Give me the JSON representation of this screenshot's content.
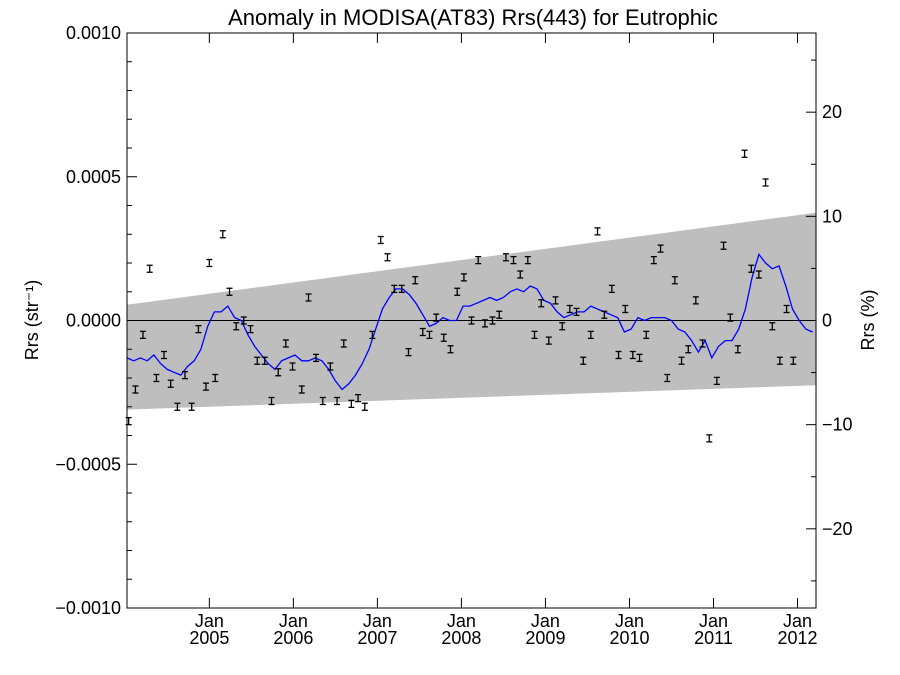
{
  "chart_data": {
    "type": "scatter",
    "title": "Anomaly in MODISA(AT83) Rrs(443) for Eutrophic",
    "ylabel_left": "Rrs (str⁻¹)",
    "ylabel_right": "Rrs (%)",
    "xlabel": "",
    "x_range": [
      2004.02,
      2012.22
    ],
    "ylim": [
      -0.001,
      0.001
    ],
    "ylim_right": [
      -27.6,
      27.6
    ],
    "left_ticks": [
      {
        "value": -0.001,
        "label": "−0.0010"
      },
      {
        "value": -0.0005,
        "label": "−0.0005"
      },
      {
        "value": 0.0,
        "label": "0.0000"
      },
      {
        "value": 0.0005,
        "label": "0.0005"
      },
      {
        "value": 0.001,
        "label": "0.0010"
      }
    ],
    "right_ticks": [
      {
        "value": -20,
        "label": "−20"
      },
      {
        "value": -10,
        "label": "−10"
      },
      {
        "value": 0,
        "label": "0"
      },
      {
        "value": 10,
        "label": "10"
      },
      {
        "value": 20,
        "label": "20"
      }
    ],
    "x_ticks": [
      {
        "value": 2005.0,
        "line1": "Jan",
        "line2": "2005"
      },
      {
        "value": 2006.0,
        "line1": "Jan",
        "line2": "2006"
      },
      {
        "value": 2007.0,
        "line1": "Jan",
        "line2": "2007"
      },
      {
        "value": 2008.0,
        "line1": "Jan",
        "line2": "2008"
      },
      {
        "value": 2009.0,
        "line1": "Jan",
        "line2": "2009"
      },
      {
        "value": 2010.0,
        "line1": "Jan",
        "line2": "2010"
      },
      {
        "value": 2011.0,
        "line1": "Jan",
        "line2": "2011"
      },
      {
        "value": 2012.0,
        "line1": "Jan",
        "line2": "2012"
      }
    ],
    "band": {
      "x": [
        2004.02,
        2012.22
      ],
      "upper": [
        5.5e-05,
        0.000375
      ],
      "lower": [
        -0.00031,
        -0.000225
      ],
      "color": "#bebebe"
    },
    "zero_line": 0.0,
    "colors": {
      "points": "#000000",
      "smooth": "#0000ff",
      "band": "#bebebe"
    },
    "series": [
      {
        "kind": "monthly_anomaly_with_errorbars",
        "points": [
          [
            2004.04,
            -0.00035
          ],
          [
            2004.12,
            -0.00024
          ],
          [
            2004.21,
            -5e-05
          ],
          [
            2004.29,
            0.00018
          ],
          [
            2004.37,
            -0.0002
          ],
          [
            2004.46,
            -0.00012
          ],
          [
            2004.54,
            -0.00022
          ],
          [
            2004.62,
            -0.0003
          ],
          [
            2004.71,
            -0.00019
          ],
          [
            2004.79,
            -0.0003
          ],
          [
            2004.87,
            -3e-05
          ],
          [
            2004.96,
            -0.00023
          ],
          [
            2005.0,
            0.0002
          ],
          [
            2005.07,
            -0.0002
          ],
          [
            2005.16,
            0.0003
          ],
          [
            2005.24,
            0.0001
          ],
          [
            2005.32,
            -2e-05
          ],
          [
            2005.41,
            0.0
          ],
          [
            2005.49,
            -3e-05
          ],
          [
            2005.57,
            -0.00014
          ],
          [
            2005.66,
            -0.00014
          ],
          [
            2005.74,
            -0.00028
          ],
          [
            2005.82,
            -0.00018
          ],
          [
            2005.91,
            -8e-05
          ],
          [
            2005.99,
            -0.00016
          ],
          [
            2006.1,
            -0.00024
          ],
          [
            2006.18,
            8e-05
          ],
          [
            2006.27,
            -0.00013
          ],
          [
            2006.35,
            -0.00028
          ],
          [
            2006.44,
            -0.00016
          ],
          [
            2006.52,
            -0.00028
          ],
          [
            2006.6,
            -8e-05
          ],
          [
            2006.69,
            -0.00029
          ],
          [
            2006.77,
            -0.00027
          ],
          [
            2006.85,
            -0.0003
          ],
          [
            2006.94,
            -5e-05
          ],
          [
            2007.04,
            0.00028
          ],
          [
            2007.12,
            0.00022
          ],
          [
            2007.2,
            0.00011
          ],
          [
            2007.29,
            0.00011
          ],
          [
            2007.37,
            -0.00011
          ],
          [
            2007.45,
            0.00014
          ],
          [
            2007.54,
            -4e-05
          ],
          [
            2007.62,
            -5e-05
          ],
          [
            2007.7,
            1e-05
          ],
          [
            2007.79,
            -6e-05
          ],
          [
            2007.87,
            -0.0001
          ],
          [
            2007.95,
            0.0001
          ],
          [
            2008.03,
            0.00015
          ],
          [
            2008.12,
            0.0
          ],
          [
            2008.2,
            0.00021
          ],
          [
            2008.28,
            -1e-05
          ],
          [
            2008.37,
            0.0
          ],
          [
            2008.45,
            2e-05
          ],
          [
            2008.53,
            0.00022
          ],
          [
            2008.62,
            0.00021
          ],
          [
            2008.7,
            0.00016
          ],
          [
            2008.79,
            0.00021
          ],
          [
            2008.87,
            -5e-05
          ],
          [
            2008.95,
            6e-05
          ],
          [
            2009.04,
            -7e-05
          ],
          [
            2009.12,
            7e-05
          ],
          [
            2009.2,
            -2e-05
          ],
          [
            2009.29,
            4e-05
          ],
          [
            2009.37,
            3e-05
          ],
          [
            2009.45,
            -0.00014
          ],
          [
            2009.54,
            -5e-05
          ],
          [
            2009.62,
            0.00031
          ],
          [
            2009.7,
            2e-05
          ],
          [
            2009.79,
            0.00011
          ],
          [
            2009.87,
            -0.00012
          ],
          [
            2009.95,
            4e-05
          ],
          [
            2010.04,
            -0.00012
          ],
          [
            2010.12,
            -0.00013
          ],
          [
            2010.2,
            -5e-05
          ],
          [
            2010.29,
            0.00021
          ],
          [
            2010.37,
            0.00025
          ],
          [
            2010.45,
            -0.0002
          ],
          [
            2010.54,
            0.00014
          ],
          [
            2010.62,
            -0.00014
          ],
          [
            2010.7,
            -0.0001
          ],
          [
            2010.79,
            7e-05
          ],
          [
            2010.87,
            -8e-05
          ],
          [
            2010.95,
            -0.00041
          ],
          [
            2011.04,
            -0.00021
          ],
          [
            2011.12,
            0.00026
          ],
          [
            2011.2,
            1e-05
          ],
          [
            2011.29,
            -0.0001
          ],
          [
            2011.37,
            0.00058
          ],
          [
            2011.45,
            0.00018
          ],
          [
            2011.54,
            0.00016
          ],
          [
            2011.62,
            0.00048
          ],
          [
            2011.7,
            -2e-05
          ],
          [
            2011.79,
            -0.00014
          ],
          [
            2011.87,
            4e-05
          ],
          [
            2011.95,
            -0.00014
          ]
        ]
      },
      {
        "kind": "running_mean",
        "color": "#0000ff",
        "points": [
          [
            2004.02,
            -0.00013
          ],
          [
            2004.1,
            -0.00014
          ],
          [
            2004.18,
            -0.00013
          ],
          [
            2004.26,
            -0.00014
          ],
          [
            2004.34,
            -0.00012
          ],
          [
            2004.42,
            -0.00015
          ],
          [
            2004.5,
            -0.00017
          ],
          [
            2004.58,
            -0.00018
          ],
          [
            2004.66,
            -0.00019
          ],
          [
            2004.74,
            -0.00016
          ],
          [
            2004.82,
            -0.00014
          ],
          [
            2004.9,
            -0.0001
          ],
          [
            2004.98,
            -2e-05
          ],
          [
            2005.06,
            3e-05
          ],
          [
            2005.14,
            3e-05
          ],
          [
            2005.22,
            5e-05
          ],
          [
            2005.3,
            1e-05
          ],
          [
            2005.38,
            0.0
          ],
          [
            2005.46,
            -5e-05
          ],
          [
            2005.54,
            -9e-05
          ],
          [
            2005.62,
            -0.00012
          ],
          [
            2005.7,
            -0.00015
          ],
          [
            2005.78,
            -0.00017
          ],
          [
            2005.86,
            -0.00014
          ],
          [
            2005.94,
            -0.00013
          ],
          [
            2006.02,
            -0.00012
          ],
          [
            2006.1,
            -0.00014
          ],
          [
            2006.18,
            -0.00014
          ],
          [
            2006.26,
            -0.00013
          ],
          [
            2006.34,
            -0.00014
          ],
          [
            2006.42,
            -0.00017
          ],
          [
            2006.5,
            -0.00021
          ],
          [
            2006.58,
            -0.00024
          ],
          [
            2006.66,
            -0.00022
          ],
          [
            2006.74,
            -0.00019
          ],
          [
            2006.82,
            -0.00015
          ],
          [
            2006.9,
            -0.0001
          ],
          [
            2006.98,
            -3e-05
          ],
          [
            2007.06,
            4e-05
          ],
          [
            2007.14,
            8e-05
          ],
          [
            2007.22,
            0.00011
          ],
          [
            2007.3,
            0.00011
          ],
          [
            2007.38,
            9e-05
          ],
          [
            2007.46,
            6e-05
          ],
          [
            2007.54,
            2e-05
          ],
          [
            2007.62,
            -2e-05
          ],
          [
            2007.7,
            -1e-05
          ],
          [
            2007.78,
            1e-05
          ],
          [
            2007.86,
            0.0
          ],
          [
            2007.94,
            0.0
          ],
          [
            2008.02,
            5e-05
          ],
          [
            2008.1,
            5e-05
          ],
          [
            2008.18,
            6e-05
          ],
          [
            2008.26,
            7e-05
          ],
          [
            2008.34,
            8e-05
          ],
          [
            2008.42,
            7e-05
          ],
          [
            2008.5,
            8e-05
          ],
          [
            2008.58,
            0.0001
          ],
          [
            2008.66,
            0.00011
          ],
          [
            2008.74,
            0.0001
          ],
          [
            2008.82,
            0.00012
          ],
          [
            2008.9,
            0.00011
          ],
          [
            2008.98,
            7e-05
          ],
          [
            2009.06,
            6e-05
          ],
          [
            2009.14,
            3e-05
          ],
          [
            2009.22,
            1e-05
          ],
          [
            2009.3,
            2e-05
          ],
          [
            2009.38,
            3e-05
          ],
          [
            2009.46,
            3e-05
          ],
          [
            2009.54,
            5e-05
          ],
          [
            2009.62,
            4e-05
          ],
          [
            2009.7,
            3e-05
          ],
          [
            2009.78,
            2e-05
          ],
          [
            2009.86,
            1e-05
          ],
          [
            2009.94,
            -4e-05
          ],
          [
            2010.02,
            -3e-05
          ],
          [
            2010.1,
            1e-05
          ],
          [
            2010.18,
            0.0
          ],
          [
            2010.26,
            1e-05
          ],
          [
            2010.34,
            1e-05
          ],
          [
            2010.42,
            1e-05
          ],
          [
            2010.5,
            0.0
          ],
          [
            2010.58,
            -3e-05
          ],
          [
            2010.66,
            -4e-05
          ],
          [
            2010.74,
            -7e-05
          ],
          [
            2010.82,
            -0.00011
          ],
          [
            2010.9,
            -7e-05
          ],
          [
            2010.98,
            -0.00013
          ],
          [
            2011.06,
            -9e-05
          ],
          [
            2011.14,
            -7e-05
          ],
          [
            2011.22,
            -7e-05
          ],
          [
            2011.3,
            -3e-05
          ],
          [
            2011.38,
            4e-05
          ],
          [
            2011.46,
            0.00015
          ],
          [
            2011.54,
            0.00023
          ],
          [
            2011.62,
            0.0002
          ],
          [
            2011.7,
            0.00018
          ],
          [
            2011.78,
            0.00019
          ],
          [
            2011.86,
            0.00012
          ],
          [
            2011.94,
            4e-05
          ],
          [
            2012.02,
            0.0
          ],
          [
            2012.1,
            -3e-05
          ],
          [
            2012.18,
            -4e-05
          ]
        ]
      }
    ]
  }
}
